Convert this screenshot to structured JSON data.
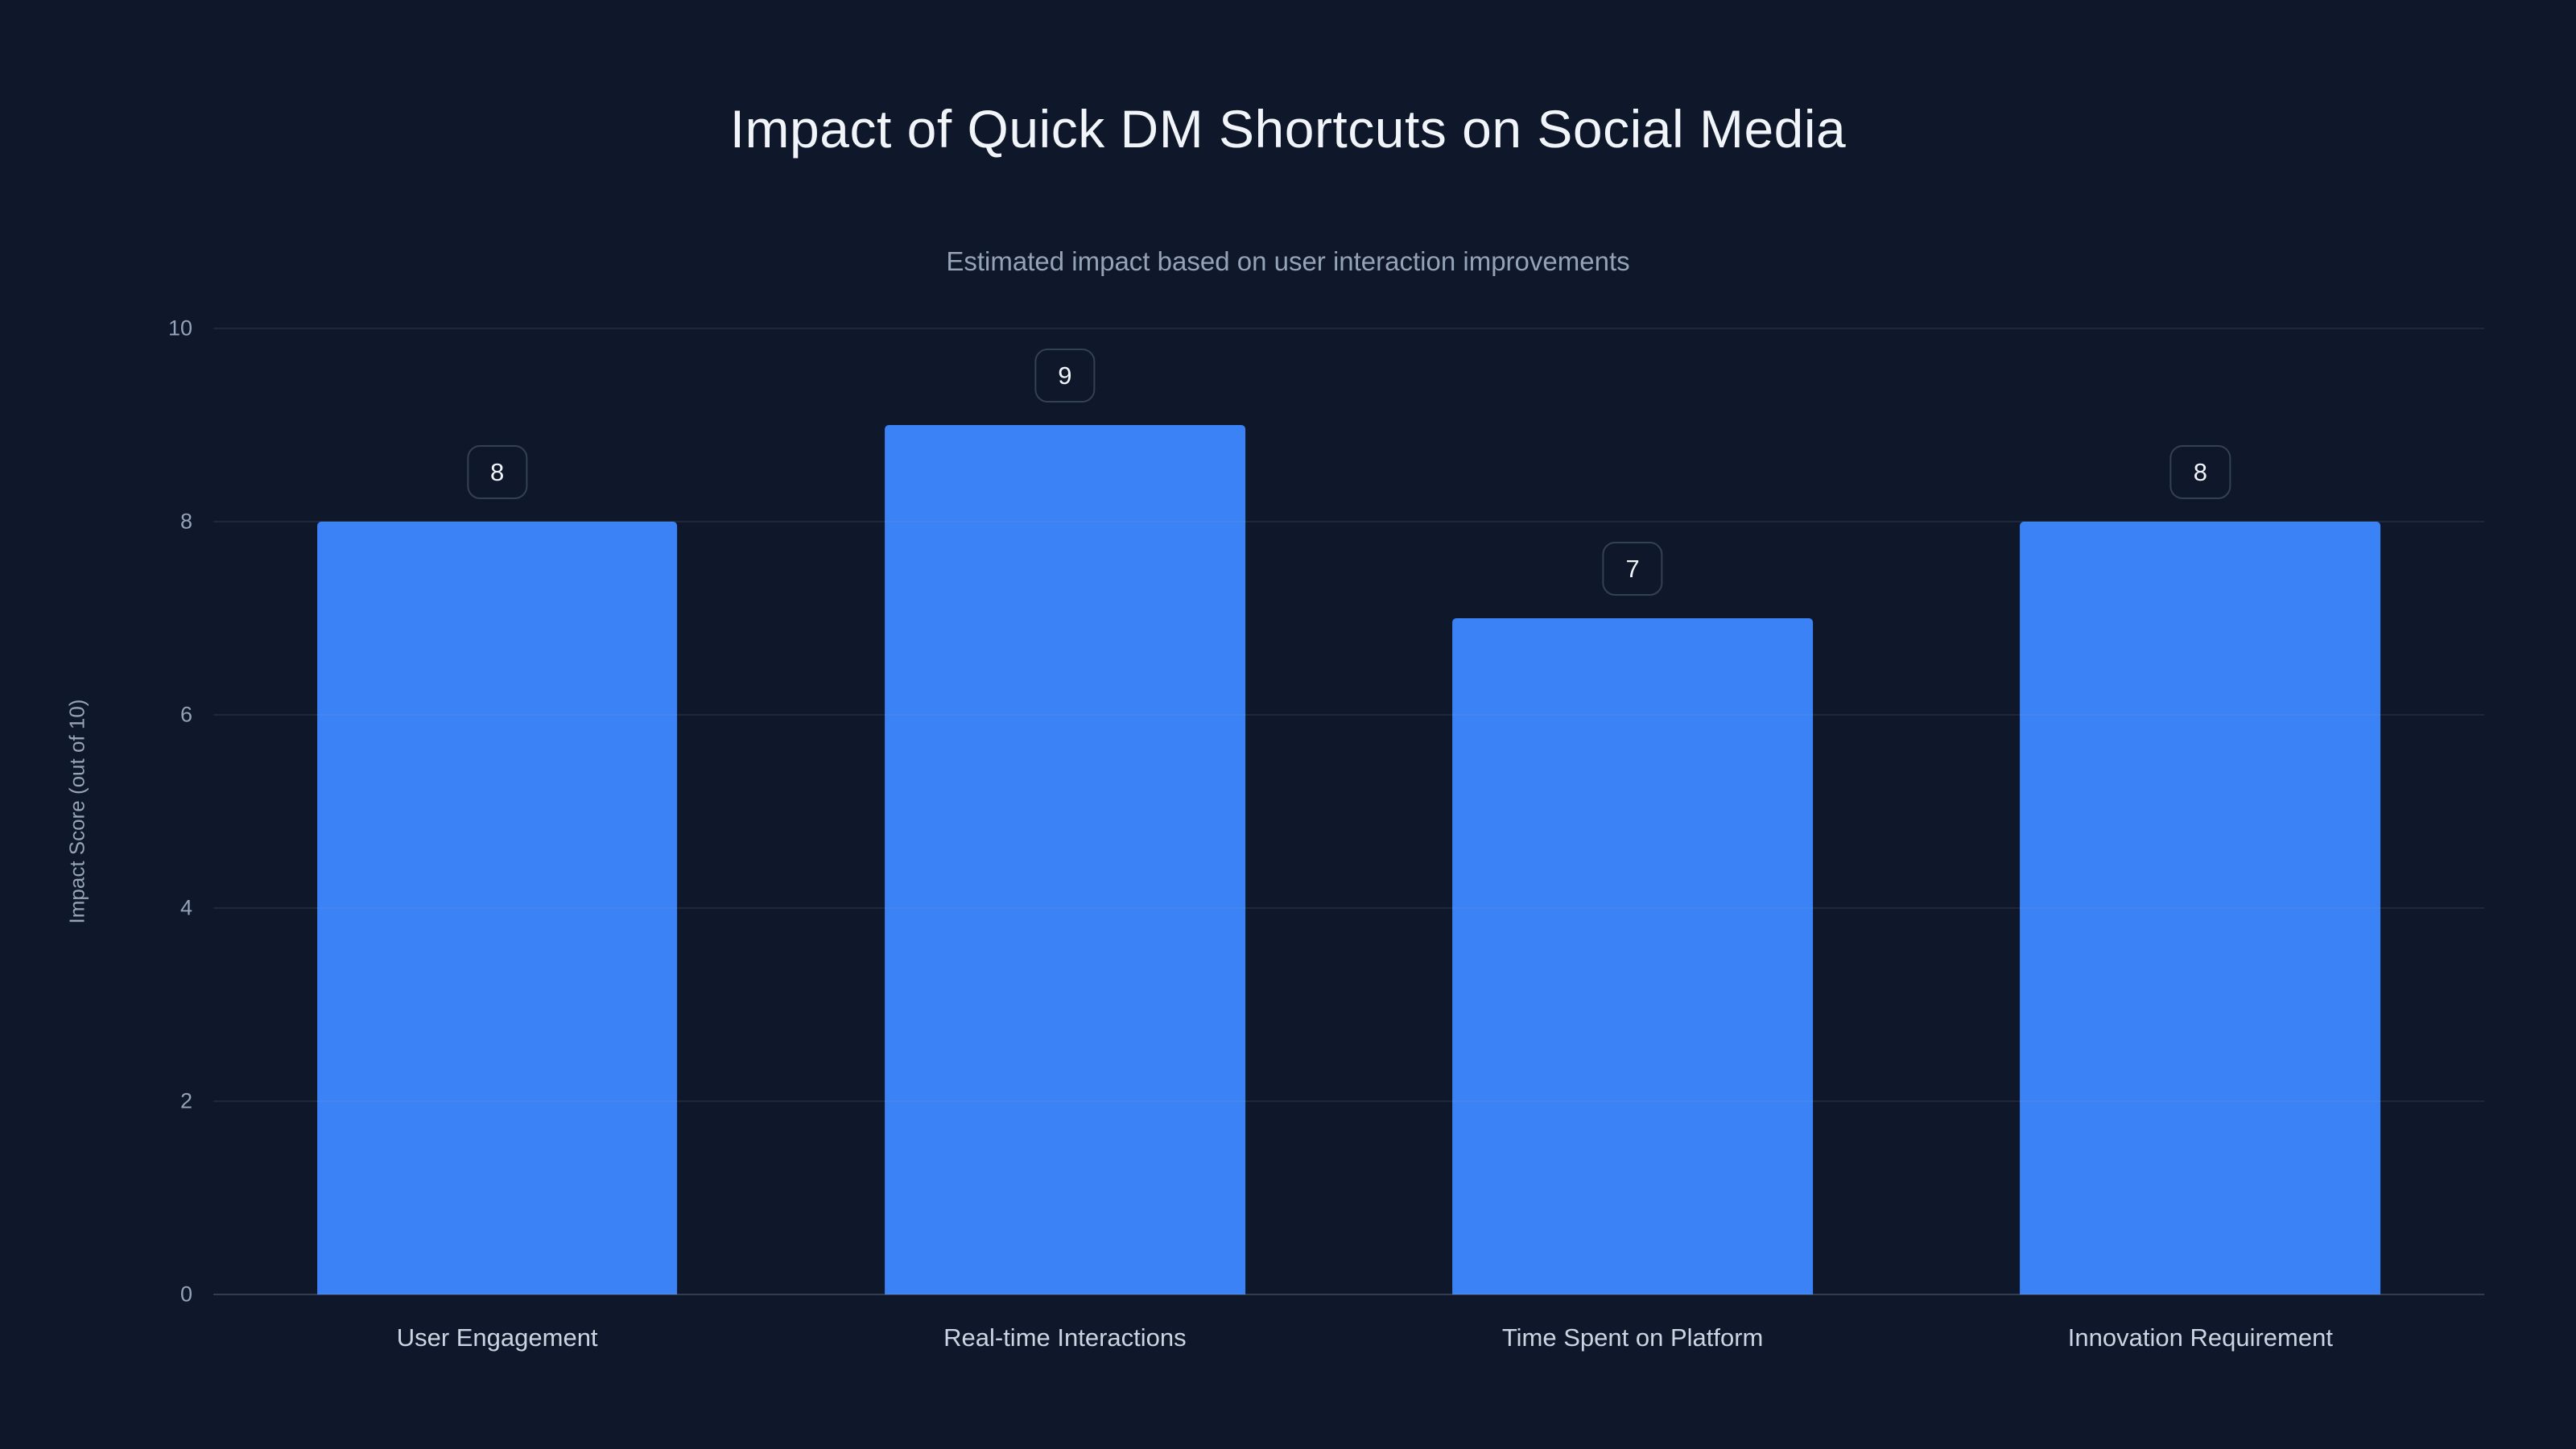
{
  "chart_data": {
    "type": "bar",
    "title": "Impact of Quick DM Shortcuts on Social Media",
    "subtitle": "Estimated impact based on user interaction improvements",
    "categories": [
      "User Engagement",
      "Real-time Interactions",
      "Time Spent on Platform",
      "Innovation Requirement"
    ],
    "values": [
      8,
      9,
      7,
      8
    ],
    "xlabel": "",
    "ylabel": "Impact Score (out of 10)",
    "ylim": [
      0,
      10
    ],
    "yticks": [
      0,
      2,
      4,
      6,
      8,
      10
    ],
    "grid": true,
    "legend": false,
    "colors": {
      "background": "#0f172a",
      "bar": "#3b82f6",
      "title_text": "#f1f5f9",
      "subtitle_text": "#94a3b8",
      "tick_text": "#94a3b8",
      "category_text": "#cbd5e1",
      "gridline": "rgba(148,163,184,0.12)",
      "badge_border": "#334155",
      "badge_text": "#f1f5f9"
    }
  }
}
